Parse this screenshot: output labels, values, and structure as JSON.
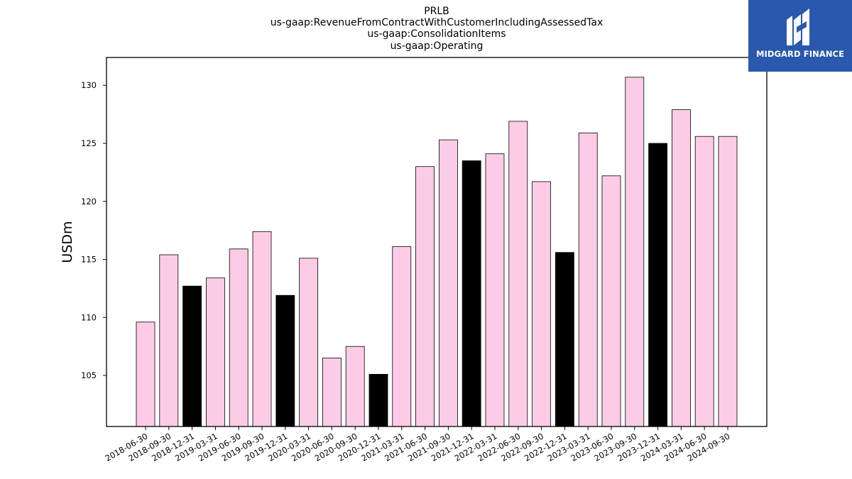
{
  "brand": {
    "name": "MIDGARD FINANCE",
    "color": "#2a58ad"
  },
  "chart_data": {
    "type": "bar",
    "title_lines": [
      "PRLB",
      "us-gaap:RevenueFromContractWithCustomerIncludingAssessedTax",
      "us-gaap:ConsolidationItems",
      "us-gaap:Operating"
    ],
    "ylabel": "USDm",
    "ylim": [
      100.6,
      132.4
    ],
    "yticks": [
      105,
      110,
      115,
      120,
      125,
      130
    ],
    "categories": [
      "2018-06-30",
      "2018-09-30",
      "2018-12-31",
      "2019-03-31",
      "2019-06-30",
      "2019-09-30",
      "2019-12-31",
      "2020-03-31",
      "2020-06-30",
      "2020-09-30",
      "2020-12-31",
      "2021-03-31",
      "2021-06-30",
      "2021-09-30",
      "2021-12-31",
      "2022-03-31",
      "2022-06-30",
      "2022-09-30",
      "2022-12-31",
      "2023-03-31",
      "2023-06-30",
      "2023-09-30",
      "2023-12-31",
      "2024-03-31",
      "2024-06-30",
      "2024-09-30"
    ],
    "values": [
      109.6,
      115.4,
      112.7,
      113.4,
      115.9,
      117.4,
      111.9,
      115.1,
      106.5,
      107.5,
      105.1,
      116.1,
      123.0,
      125.3,
      123.5,
      124.1,
      126.9,
      121.7,
      115.6,
      125.9,
      122.2,
      130.7,
      125.0,
      127.9,
      125.6,
      125.6
    ],
    "highlight": [
      false,
      false,
      true,
      false,
      false,
      false,
      true,
      false,
      false,
      false,
      true,
      false,
      false,
      false,
      true,
      false,
      false,
      false,
      true,
      false,
      false,
      false,
      true,
      false,
      false,
      false
    ],
    "colors": {
      "bar": "#fccce6",
      "highlight_bar": "#000000",
      "edge": "#000000"
    },
    "grid": false,
    "legend": "none"
  }
}
